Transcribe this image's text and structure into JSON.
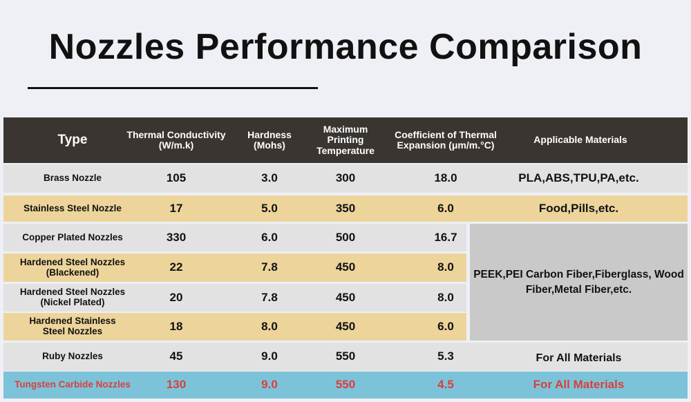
{
  "title": "Nozzles Performance Comparison",
  "headers": [
    "Type",
    "Thermal Conductivity (W/m.k)",
    "Hardness (Mohs)",
    "Maximum Printing Temperature",
    "Coefficient of Thermal Expansion (μm/m.°C)",
    "Applicable Materials"
  ],
  "rows": [
    {
      "type": "Brass Nozzle",
      "tc": "105",
      "hardness": "3.0",
      "temp": "300",
      "cte": "18.0",
      "materials": "PLA,ABS,TPU,PA,etc."
    },
    {
      "type": "Stainless Steel Nozzle",
      "tc": "17",
      "hardness": "5.0",
      "temp": "350",
      "cte": "6.0",
      "materials": "Food,Pills,etc."
    },
    {
      "type": "Copper Plated Nozzles",
      "tc": "330",
      "hardness": "6.0",
      "temp": "500",
      "cte": "16.7"
    },
    {
      "type": "Hardened Steel Nozzles (Blackened)",
      "tc": "22",
      "hardness": "7.8",
      "temp": "450",
      "cte": "8.0"
    },
    {
      "type": "Hardened Steel Nozzles (Nickel Plated)",
      "tc": "20",
      "hardness": "7.8",
      "temp": "450",
      "cte": "8.0"
    },
    {
      "type": "Hardened Stainless Steel Nozzles",
      "tc": "18",
      "hardness": "8.0",
      "temp": "450",
      "cte": "6.0"
    },
    {
      "type": "Ruby Nozzles",
      "tc": "45",
      "hardness": "9.0",
      "temp": "550",
      "cte": "5.3",
      "materials": "For All Materials"
    },
    {
      "type": "Tungsten Carbide Nozzles",
      "tc": "130",
      "hardness": "9.0",
      "temp": "550",
      "cte": "4.5",
      "materials": "For All Materials"
    }
  ],
  "merged_materials": "PEEK,PEI Carbon Fiber,Fiberglass, Wood Fiber,Metal Fiber,etc.",
  "colors": {
    "header": "#3a3531",
    "grey": "#e2e2e2",
    "tan": "#ecd49b",
    "highlight": "#7cc3d9",
    "highlight_text": "#d8403a"
  }
}
